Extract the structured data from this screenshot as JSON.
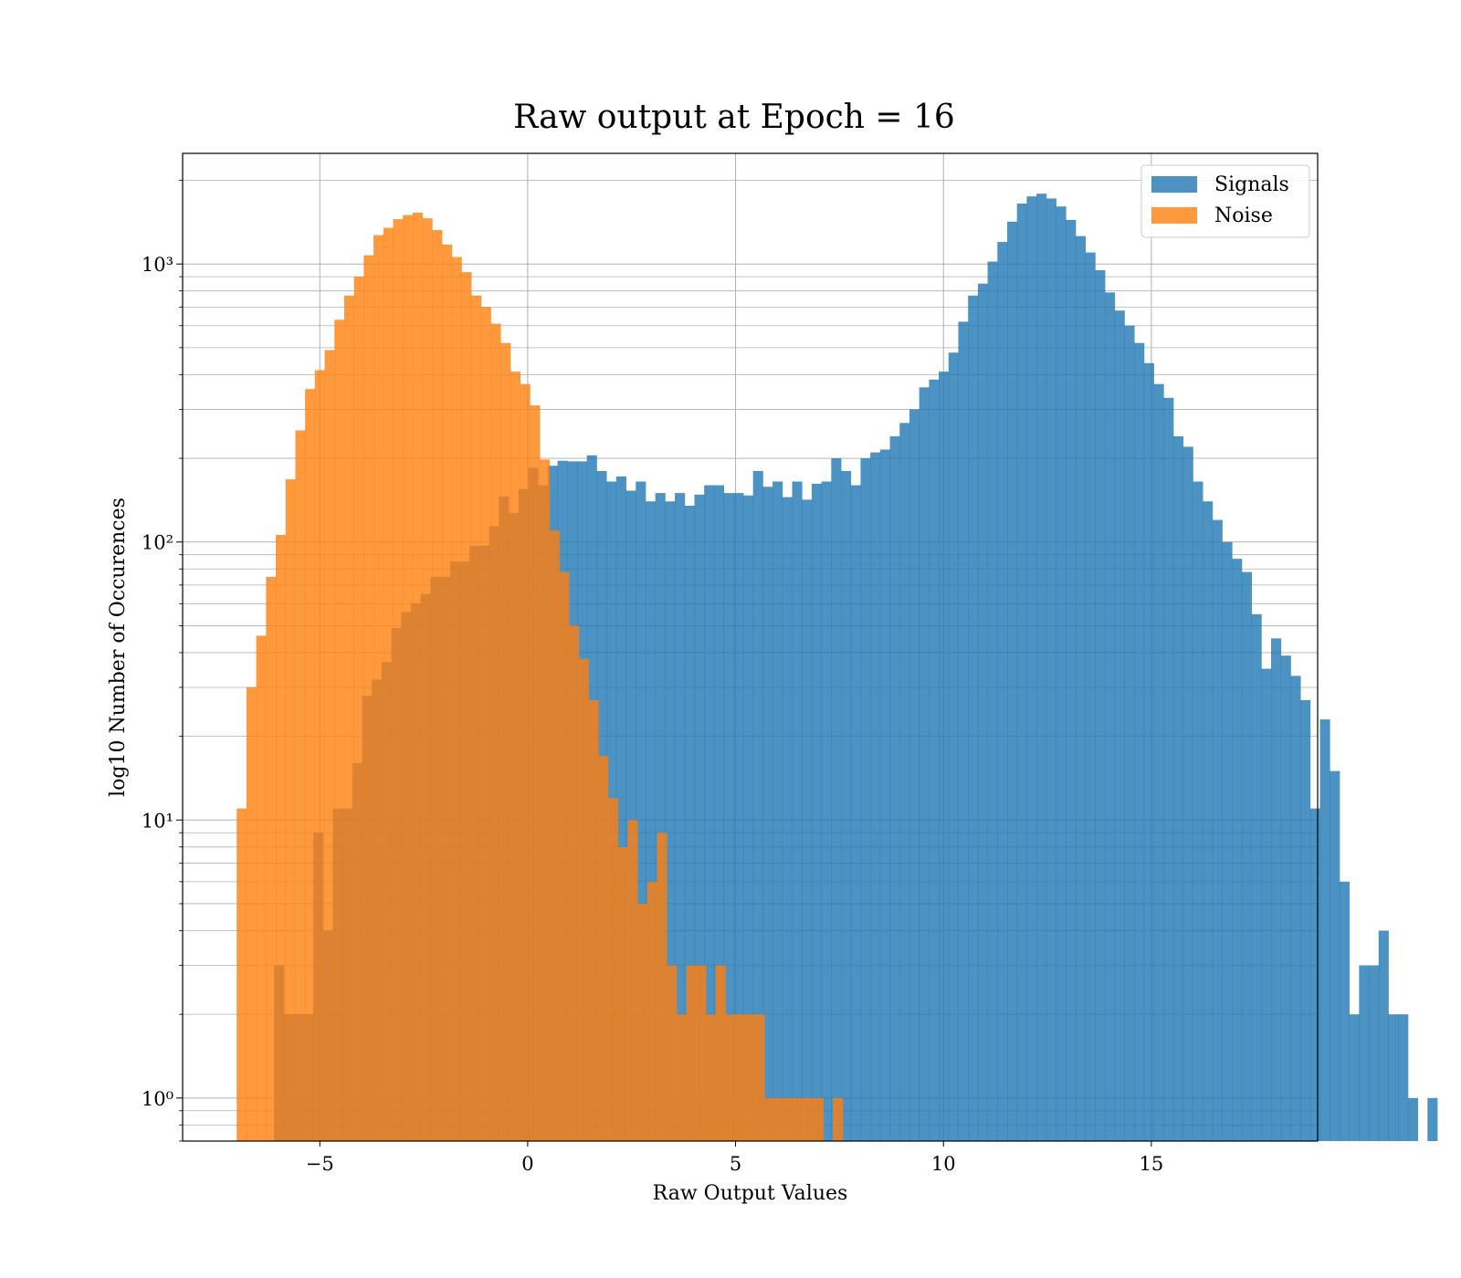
{
  "chart_data": {
    "type": "histogram",
    "title": "Raw output at Epoch = 16",
    "xlabel": "Raw Output Values",
    "ylabel": "log10 Number of Occurences",
    "xlim": [
      -8.3,
      19.0
    ],
    "ylim": [
      0.7,
      2500
    ],
    "yscale": "log",
    "x_ticks": [
      -5,
      0,
      5,
      10,
      15
    ],
    "x_tick_labels": [
      "−5",
      "0",
      "5",
      "10",
      "15"
    ],
    "y_ticks": [
      1,
      10,
      100,
      1000
    ],
    "y_tick_labels": [
      "10⁰",
      "10¹",
      "10²",
      "10³"
    ],
    "grid": true,
    "legend_position": "top-right",
    "colors": {
      "signals": "#1f77b4",
      "noise": "#ff7f0e"
    },
    "series": [
      {
        "name": "Signals",
        "bin_start": -6.1,
        "bin_width": 0.2351,
        "counts": [
          3,
          2,
          2,
          2,
          9,
          4,
          11,
          11,
          16,
          28,
          32,
          37,
          49,
          56,
          60,
          65,
          75,
          75,
          85,
          85,
          97,
          97,
          114,
          146,
          127,
          155,
          185,
          160,
          188,
          196,
          195,
          195,
          205,
          180,
          165,
          172,
          153,
          165,
          140,
          150,
          140,
          150,
          135,
          148,
          160,
          160,
          150,
          150,
          147,
          180,
          158,
          165,
          145,
          165,
          142,
          162,
          165,
          200,
          180,
          160,
          200,
          210,
          215,
          240,
          268,
          300,
          360,
          384,
          410,
          480,
          620,
          770,
          850,
          1020,
          1200,
          1420,
          1650,
          1750,
          1790,
          1720,
          1610,
          1440,
          1260,
          1100,
          950,
          790,
          680,
          600,
          520,
          440,
          370,
          330,
          240,
          220,
          165,
          140,
          120,
          100,
          87,
          78,
          55,
          35,
          45,
          39,
          33,
          27,
          11,
          23,
          15,
          6,
          2,
          3,
          3,
          4,
          2,
          2,
          1,
          0,
          1
        ]
      },
      {
        "name": "Noise",
        "bin_start": -7.0,
        "bin_width": 0.2351,
        "counts": [
          11,
          30,
          46,
          75,
          106,
          168,
          252,
          355,
          415,
          490,
          630,
          770,
          900,
          1075,
          1270,
          1350,
          1450,
          1500,
          1530,
          1460,
          1325,
          1175,
          1060,
          935,
          770,
          700,
          610,
          520,
          410,
          370,
          310,
          198,
          110,
          78,
          50,
          38,
          27,
          17,
          12,
          8,
          10,
          5,
          6,
          9,
          3,
          2,
          3,
          3,
          2,
          3,
          2,
          2,
          2,
          2,
          1,
          1,
          1,
          1,
          1,
          1,
          0,
          1
        ]
      }
    ]
  }
}
